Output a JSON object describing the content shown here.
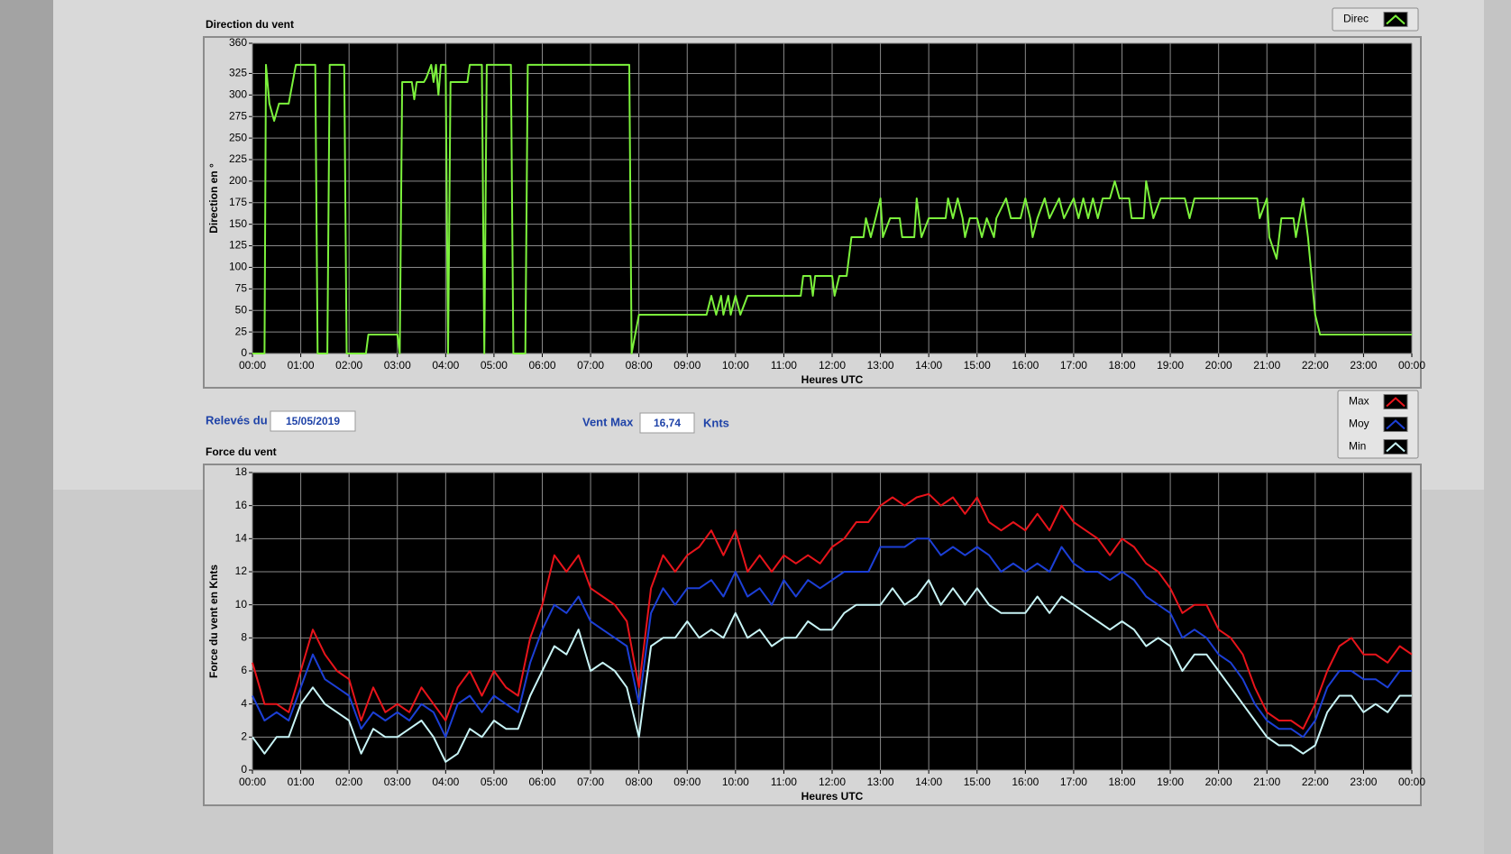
{
  "chart_data": [
    {
      "type": "line",
      "title": "Direction du vent",
      "x_label": "Heures UTC",
      "y_label": "Direction en °",
      "xlim": [
        0,
        24
      ],
      "xticks": [
        {
          "value": 0,
          "label": "00:00"
        },
        {
          "value": 1,
          "label": "01:00"
        },
        {
          "value": 2,
          "label": "02:00"
        },
        {
          "value": 3,
          "label": "03:00"
        },
        {
          "value": 4,
          "label": "04:00"
        },
        {
          "value": 5,
          "label": "05:00"
        },
        {
          "value": 6,
          "label": "06:00"
        },
        {
          "value": 7,
          "label": "07:00"
        },
        {
          "value": 8,
          "label": "08:00"
        },
        {
          "value": 9,
          "label": "09:00"
        },
        {
          "value": 10,
          "label": "10:00"
        },
        {
          "value": 11,
          "label": "11:00"
        },
        {
          "value": 12,
          "label": "12:00"
        },
        {
          "value": 13,
          "label": "13:00"
        },
        {
          "value": 14,
          "label": "14:00"
        },
        {
          "value": 15,
          "label": "15:00"
        },
        {
          "value": 16,
          "label": "16:00"
        },
        {
          "value": 17,
          "label": "17:00"
        },
        {
          "value": 18,
          "label": "18:00"
        },
        {
          "value": 19,
          "label": "19:00"
        },
        {
          "value": 20,
          "label": "20:00"
        },
        {
          "value": 21,
          "label": "21:00"
        },
        {
          "value": 22,
          "label": "22:00"
        },
        {
          "value": 23,
          "label": "23:00"
        },
        {
          "value": 24,
          "label": "00:00"
        }
      ],
      "ylim": [
        0,
        360
      ],
      "yticks": [
        0,
        25,
        50,
        75,
        100,
        125,
        150,
        175,
        200,
        225,
        250,
        275,
        300,
        325,
        360
      ],
      "grid": true,
      "x": [
        0,
        0.25,
        0.28,
        0.35,
        0.45,
        0.55,
        0.75,
        0.9,
        1.3,
        1.35,
        1.55,
        1.6,
        1.9,
        1.95,
        2.35,
        2.4,
        3.0,
        3.05,
        3.1,
        3.3,
        3.35,
        3.4,
        3.55,
        3.6,
        3.7,
        3.75,
        3.8,
        3.85,
        3.9,
        4.0,
        4.05,
        4.1,
        4.45,
        4.5,
        4.75,
        4.8,
        4.85,
        5.35,
        5.4,
        5.65,
        5.7,
        7.8,
        7.85,
        8.0,
        9.4,
        9.5,
        9.6,
        9.7,
        9.75,
        9.85,
        9.9,
        10.0,
        10.1,
        10.25,
        11.35,
        11.4,
        11.55,
        11.6,
        11.65,
        12.0,
        12.05,
        12.15,
        12.3,
        12.4,
        12.65,
        12.7,
        12.8,
        12.9,
        13.0,
        13.05,
        13.2,
        13.4,
        13.45,
        13.7,
        13.75,
        13.85,
        14.0,
        14.35,
        14.4,
        14.5,
        14.6,
        14.7,
        14.75,
        14.85,
        15.0,
        15.1,
        15.2,
        15.35,
        15.4,
        15.6,
        15.7,
        15.9,
        16.0,
        16.1,
        16.15,
        16.25,
        16.4,
        16.5,
        16.7,
        16.8,
        17.0,
        17.1,
        17.2,
        17.3,
        17.4,
        17.5,
        17.6,
        17.75,
        17.85,
        17.95,
        18.15,
        18.2,
        18.45,
        18.5,
        18.65,
        18.8,
        19.3,
        19.4,
        19.5,
        20.8,
        20.85,
        21.0,
        21.05,
        21.2,
        21.3,
        21.55,
        21.6,
        21.75,
        21.85,
        22.0,
        22.1,
        24.0
      ],
      "series": [
        {
          "name": "Direc",
          "color": "#7cf23c",
          "values": [
            0,
            0,
            335,
            290,
            270,
            290,
            290,
            335,
            335,
            0,
            0,
            335,
            335,
            0,
            0,
            22,
            22,
            0,
            315,
            315,
            295,
            315,
            315,
            320,
            335,
            315,
            335,
            300,
            335,
            335,
            0,
            315,
            315,
            335,
            335,
            0,
            335,
            335,
            0,
            0,
            335,
            335,
            0,
            45,
            45,
            67,
            45,
            67,
            45,
            67,
            45,
            67,
            45,
            67,
            67,
            90,
            90,
            67,
            90,
            90,
            67,
            90,
            90,
            135,
            135,
            157,
            135,
            157,
            180,
            135,
            157,
            157,
            135,
            135,
            180,
            135,
            157,
            157,
            180,
            157,
            180,
            157,
            135,
            157,
            157,
            135,
            157,
            135,
            157,
            180,
            157,
            157,
            180,
            157,
            135,
            157,
            180,
            157,
            180,
            157,
            180,
            157,
            180,
            157,
            180,
            157,
            180,
            180,
            200,
            180,
            180,
            157,
            157,
            200,
            157,
            180,
            180,
            157,
            180,
            180,
            157,
            180,
            135,
            110,
            157,
            157,
            135,
            180,
            135,
            45,
            22,
            22
          ]
        }
      ]
    },
    {
      "type": "line",
      "title": "Force du vent",
      "x_label": "Heures UTC",
      "y_label": "Force du vent en Knts",
      "xlim": [
        0,
        24
      ],
      "xticks": [
        {
          "value": 0,
          "label": "00:00"
        },
        {
          "value": 1,
          "label": "01:00"
        },
        {
          "value": 2,
          "label": "02:00"
        },
        {
          "value": 3,
          "label": "03:00"
        },
        {
          "value": 4,
          "label": "04:00"
        },
        {
          "value": 5,
          "label": "05:00"
        },
        {
          "value": 6,
          "label": "06:00"
        },
        {
          "value": 7,
          "label": "07:00"
        },
        {
          "value": 8,
          "label": "08:00"
        },
        {
          "value": 9,
          "label": "09:00"
        },
        {
          "value": 10,
          "label": "10:00"
        },
        {
          "value": 11,
          "label": "11:00"
        },
        {
          "value": 12,
          "label": "12:00"
        },
        {
          "value": 13,
          "label": "13:00"
        },
        {
          "value": 14,
          "label": "14:00"
        },
        {
          "value": 15,
          "label": "15:00"
        },
        {
          "value": 16,
          "label": "16:00"
        },
        {
          "value": 17,
          "label": "17:00"
        },
        {
          "value": 18,
          "label": "18:00"
        },
        {
          "value": 19,
          "label": "19:00"
        },
        {
          "value": 20,
          "label": "20:00"
        },
        {
          "value": 21,
          "label": "21:00"
        },
        {
          "value": 22,
          "label": "22:00"
        },
        {
          "value": 23,
          "label": "23:00"
        },
        {
          "value": 24,
          "label": "00:00"
        }
      ],
      "ylim": [
        0,
        18
      ],
      "yticks": [
        0,
        2,
        4,
        6,
        8,
        10,
        12,
        14,
        16,
        18
      ],
      "grid": true,
      "x": [
        0,
        0.25,
        0.5,
        0.75,
        1,
        1.25,
        1.5,
        1.75,
        2,
        2.25,
        2.5,
        2.75,
        3,
        3.25,
        3.5,
        3.75,
        4,
        4.25,
        4.5,
        4.75,
        5,
        5.25,
        5.5,
        5.75,
        6,
        6.25,
        6.5,
        6.75,
        7,
        7.25,
        7.5,
        7.75,
        8,
        8.25,
        8.5,
        8.75,
        9,
        9.25,
        9.5,
        9.75,
        10,
        10.25,
        10.5,
        10.75,
        11,
        11.25,
        11.5,
        11.75,
        12,
        12.25,
        12.5,
        12.75,
        13,
        13.25,
        13.5,
        13.75,
        14,
        14.25,
        14.5,
        14.75,
        15,
        15.25,
        15.5,
        15.75,
        16,
        16.25,
        16.5,
        16.75,
        17,
        17.25,
        17.5,
        17.75,
        18,
        18.25,
        18.5,
        18.75,
        19,
        19.25,
        19.5,
        19.75,
        20,
        20.25,
        20.5,
        20.75,
        21,
        21.25,
        21.5,
        21.75,
        22,
        22.25,
        22.5,
        22.75,
        23,
        23.25,
        23.5,
        23.75,
        24
      ],
      "series": [
        {
          "name": "Max",
          "color": "#e8141b",
          "values": [
            6.5,
            4,
            4,
            3.5,
            6,
            8.5,
            7,
            6,
            5.5,
            3,
            5,
            3.5,
            4,
            3.5,
            5,
            4,
            3,
            5,
            6,
            4.5,
            6,
            5,
            4.5,
            8,
            10,
            13,
            12,
            13,
            11,
            10.5,
            10,
            9,
            5,
            11,
            13,
            12,
            13,
            13.5,
            14.5,
            13,
            14.5,
            12,
            13,
            12,
            13,
            12.5,
            13,
            12.5,
            13.5,
            14,
            15,
            15,
            16,
            16.5,
            16,
            16.5,
            16.7,
            16,
            16.5,
            15.5,
            16.5,
            15,
            14.5,
            15,
            14.5,
            15.5,
            14.5,
            16,
            15,
            14.5,
            14,
            13,
            14,
            13.5,
            12.5,
            12,
            11,
            9.5,
            10,
            10,
            8.5,
            8,
            7,
            5,
            3.5,
            3,
            3,
            2.5,
            4,
            6,
            7.5,
            8,
            7,
            7,
            6.5,
            7.5,
            7
          ]
        },
        {
          "name": "Moy",
          "color": "#1c3fd6",
          "values": [
            4.5,
            3,
            3.5,
            3,
            5,
            7,
            5.5,
            5,
            4.5,
            2.5,
            3.5,
            3,
            3.5,
            3,
            4,
            3.5,
            2,
            4,
            4.5,
            3.5,
            4.5,
            4,
            3.5,
            6.5,
            8.5,
            10,
            9.5,
            10.5,
            9,
            8.5,
            8,
            7.5,
            4,
            9.5,
            11,
            10,
            11,
            11,
            11.5,
            10.5,
            12,
            10.5,
            11,
            10,
            11.5,
            10.5,
            11.5,
            11,
            11.5,
            12,
            12,
            12,
            13.5,
            13.5,
            13.5,
            14,
            14,
            13,
            13.5,
            13,
            13.5,
            13,
            12,
            12.5,
            12,
            12.5,
            12,
            13.5,
            12.5,
            12,
            12,
            11.5,
            12,
            11.5,
            10.5,
            10,
            9.5,
            8,
            8.5,
            8,
            7,
            6.5,
            5.5,
            4,
            3,
            2.5,
            2.5,
            2,
            3,
            5,
            6,
            6,
            5.5,
            5.5,
            5,
            6,
            6
          ]
        },
        {
          "name": "Min",
          "color": "#c8f4f6",
          "values": [
            2,
            1,
            2,
            2,
            4,
            5,
            4,
            3.5,
            3,
            1,
            2.5,
            2,
            2,
            2.5,
            3,
            2,
            0.5,
            1,
            2.5,
            2,
            3,
            2.5,
            2.5,
            4.5,
            6,
            7.5,
            7,
            8.5,
            6,
            6.5,
            6,
            5,
            2,
            7.5,
            8,
            8,
            9,
            8,
            8.5,
            8,
            9.5,
            8,
            8.5,
            7.5,
            8,
            8,
            9,
            8.5,
            8.5,
            9.5,
            10,
            10,
            10,
            11,
            10,
            10.5,
            11.5,
            10,
            11,
            10,
            11,
            10,
            9.5,
            9.5,
            9.5,
            10.5,
            9.5,
            10.5,
            10,
            9.5,
            9,
            8.5,
            9,
            8.5,
            7.5,
            8,
            7.5,
            6,
            7,
            7,
            6,
            5,
            4,
            3,
            2,
            1.5,
            1.5,
            1,
            1.5,
            3.5,
            4.5,
            4.5,
            3.5,
            4,
            3.5,
            4.5,
            4.5
          ]
        }
      ]
    }
  ],
  "ui": {
    "date_label": "Relevés du",
    "date": "15/05/2019",
    "max_label": "Vent Max",
    "max_value": "16,74",
    "max_unit": "Knts"
  }
}
